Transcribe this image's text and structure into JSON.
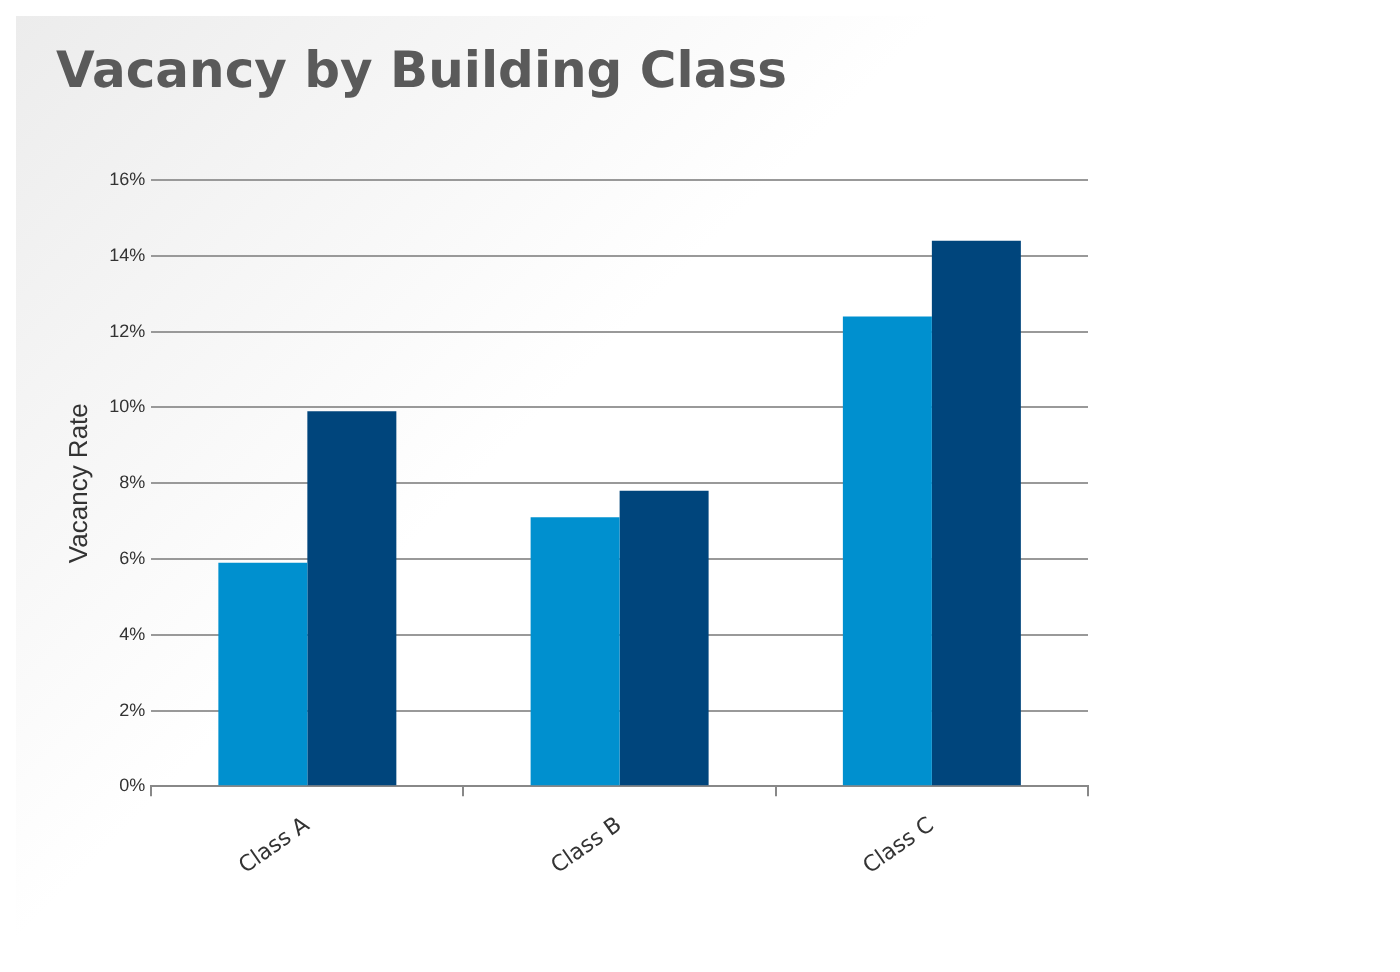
{
  "chart_data": {
    "type": "bar",
    "title": "Vacancy by Building Class",
    "ylabel": "Vacancy Rate",
    "categories": [
      "Class A",
      "Class B",
      "Class C"
    ],
    "series": [
      {
        "color": "#0090cf",
        "values": [
          5.9,
          7.1,
          12.4
        ]
      },
      {
        "color": "#00457c",
        "values": [
          9.9,
          7.8,
          14.4
        ]
      }
    ],
    "ylim": [
      0,
      16
    ],
    "yticks": [
      {
        "value": 0,
        "label": "0%"
      },
      {
        "value": 2,
        "label": "2%"
      },
      {
        "value": 4,
        "label": "4%"
      },
      {
        "value": 6,
        "label": "6%"
      },
      {
        "value": 8,
        "label": "8%"
      },
      {
        "value": 10,
        "label": "10%"
      },
      {
        "value": 12,
        "label": "12%"
      },
      {
        "value": 14,
        "label": "14%"
      },
      {
        "value": 16,
        "label": "16%"
      }
    ],
    "grid": "y",
    "legend": false
  }
}
